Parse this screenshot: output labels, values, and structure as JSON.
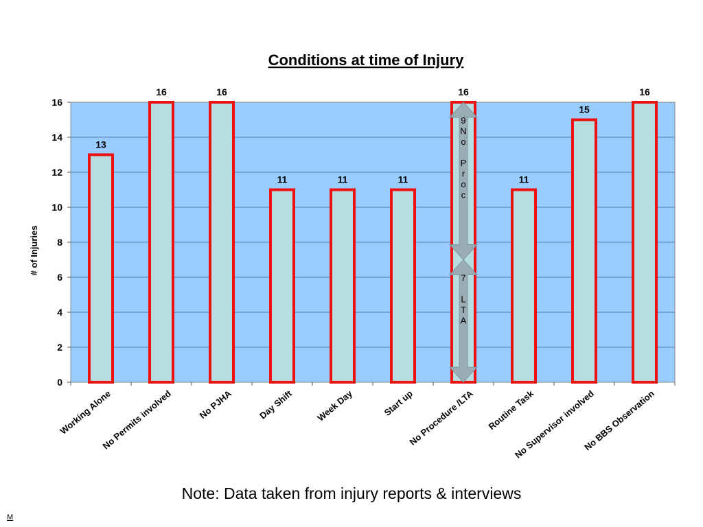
{
  "chart_data": {
    "type": "bar",
    "title": "Conditions at time of Injury",
    "ylabel": "# of Injuries",
    "xlabel": "",
    "ylim": [
      0,
      16
    ],
    "yticks": [
      0,
      2,
      4,
      6,
      8,
      10,
      12,
      14,
      16
    ],
    "grid": true,
    "categories": [
      "Working Alone",
      "No Permits involved",
      "No PJHA",
      "Day Shift",
      "Week Day",
      "Start up",
      "No Procedure /LTA",
      "Routine Task",
      "No Supervisor involved",
      "No BBS Observation"
    ],
    "values": [
      13,
      16,
      16,
      11,
      11,
      11,
      16,
      11,
      15,
      16
    ],
    "annotations": [
      {
        "category": "No Procedure /LTA",
        "from": 16,
        "to": 7,
        "lines": [
          "9",
          "N",
          "o",
          "",
          "P",
          "r",
          "o",
          "c"
        ]
      },
      {
        "category": "No Procedure /LTA",
        "from": 7,
        "to": 0,
        "lines": [
          "7",
          "",
          "L",
          "T",
          "A"
        ]
      }
    ],
    "colors": {
      "plot_bg": "#99ccff",
      "bar_fill": "#b7dde1",
      "bar_stroke": "#ee1111",
      "arrow": "#9aabb2"
    }
  },
  "note": "Note: Data taken from injury reports & interviews",
  "corner_mark": "M"
}
